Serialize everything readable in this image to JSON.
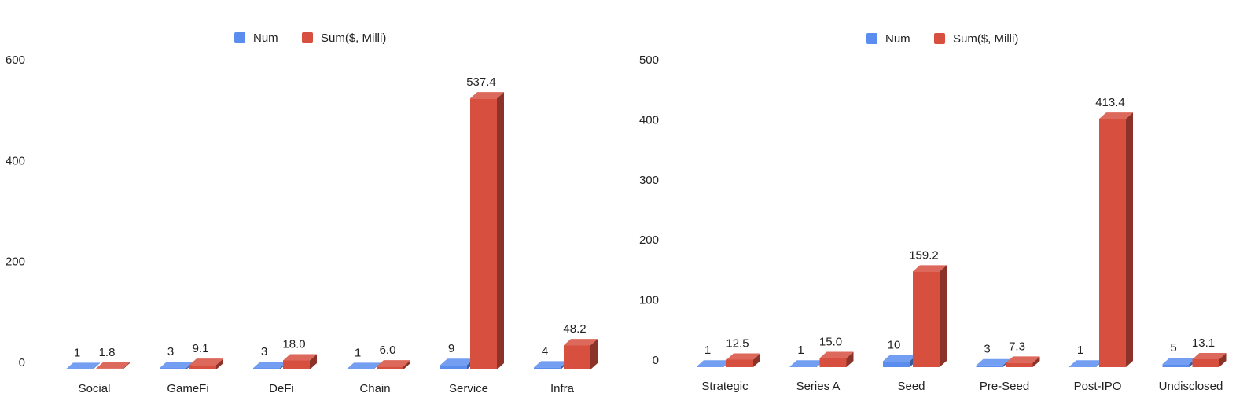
{
  "colors": {
    "num": "#5b8def",
    "sum": "#d64f3f"
  },
  "chart_data": [
    {
      "type": "bar",
      "legend_position": "top",
      "series": [
        {
          "name": "Num",
          "color": "#5b8def",
          "values": [
            1,
            3,
            3,
            1,
            9,
            4
          ],
          "labels": [
            "1",
            "3",
            "3",
            "1",
            "9",
            "4"
          ]
        },
        {
          "name": "Sum($, Milli)",
          "color": "#d64f3f",
          "values": [
            1.8,
            9.1,
            18.0,
            6.0,
            537.4,
            48.2
          ],
          "labels": [
            "1.8",
            "9.1",
            "18.0",
            "6.0",
            "537.4",
            "48.2"
          ]
        }
      ],
      "categories": [
        "Social",
        "GameFi",
        "DeFi",
        "Chain",
        "Service",
        "Infra"
      ],
      "ylim": [
        0,
        600
      ],
      "yticks": [
        "0",
        "200",
        "400",
        "600"
      ],
      "grid": false
    },
    {
      "type": "bar",
      "legend_position": "top",
      "series": [
        {
          "name": "Num",
          "color": "#5b8def",
          "values": [
            1,
            1,
            10,
            3,
            1,
            5
          ],
          "labels": [
            "1",
            "1",
            "10",
            "3",
            "1",
            "5"
          ]
        },
        {
          "name": "Sum($, Milli)",
          "color": "#d64f3f",
          "values": [
            12.5,
            15.0,
            159.2,
            7.3,
            413.4,
            13.1
          ],
          "labels": [
            "12.5",
            "15.0",
            "159.2",
            "7.3",
            "413.4",
            "13.1"
          ]
        }
      ],
      "categories": [
        "Strategic",
        "Series A",
        "Seed",
        "Pre-Seed",
        "Post-IPO",
        "Undisclosed"
      ],
      "ylim": [
        0,
        500
      ],
      "yticks": [
        "0",
        "100",
        "200",
        "300",
        "400",
        "500"
      ],
      "grid": false
    }
  ]
}
